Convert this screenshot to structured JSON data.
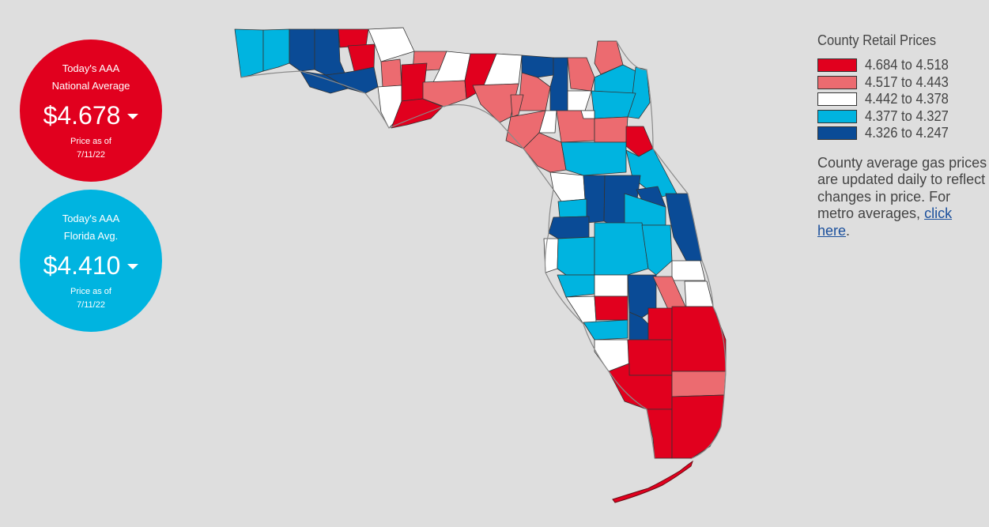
{
  "national": {
    "line1": "Today's AAA",
    "line2": "National Average",
    "price": "$4.678",
    "asof_label": "Price as of",
    "asof_date": "7/11/22",
    "color": "#e1001e"
  },
  "florida": {
    "line1": "Today's AAA",
    "line2": "Florida Avg.",
    "price": "$4.410",
    "asof_label": "Price as of",
    "asof_date": "7/11/22",
    "color": "#00b4e0"
  },
  "legend": {
    "title": "County Retail Prices",
    "items": [
      {
        "range": "4.684 to 4.518",
        "color": "#e1001e"
      },
      {
        "range": "4.517 to 4.443",
        "color": "#ec6b70"
      },
      {
        "range": "4.442 to 4.378",
        "color": "#ffffff"
      },
      {
        "range": "4.377 to 4.327",
        "color": "#00b4e0"
      },
      {
        "range": "4.326 to 4.247",
        "color": "#0a4b96"
      }
    ]
  },
  "note": {
    "text": "County average gas prices are updated daily to reflect changes in price. For metro averages,",
    "link": "click here",
    "end": "."
  },
  "map": {
    "label_hint": "florida-county-map"
  }
}
